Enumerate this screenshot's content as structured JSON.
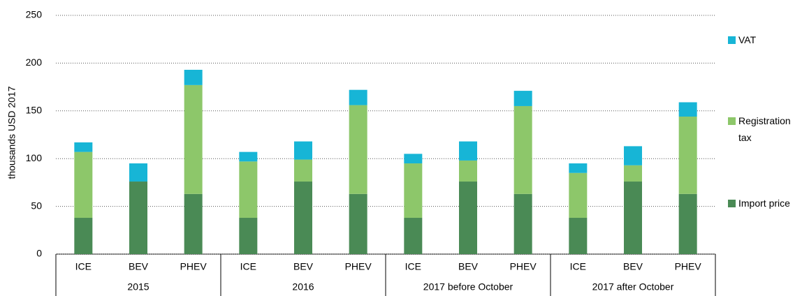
{
  "chart_data": {
    "type": "stacked-bar",
    "y_label": "thousands USD 2017",
    "groups": [
      {
        "name": "2015",
        "categories": [
          "ICE",
          "BEV",
          "PHEV"
        ]
      },
      {
        "name": "2016",
        "categories": [
          "ICE",
          "BEV",
          "PHEV"
        ]
      },
      {
        "name": "2017 before October",
        "categories": [
          "ICE",
          "BEV",
          "PHEV"
        ]
      },
      {
        "name": "2017 after October",
        "categories": [
          "ICE",
          "BEV",
          "PHEV"
        ]
      }
    ],
    "series": [
      {
        "name": "Import price",
        "color": "#4a8a55",
        "values": [
          [
            38,
            76,
            63
          ],
          [
            38,
            76,
            63
          ],
          [
            38,
            76,
            63
          ],
          [
            38,
            76,
            63
          ]
        ]
      },
      {
        "name": "Registration tax",
        "color": "#8dc76a",
        "values": [
          [
            69,
            0,
            114
          ],
          [
            59,
            23,
            93
          ],
          [
            57,
            22,
            92
          ],
          [
            47,
            17,
            81
          ]
        ]
      },
      {
        "name": "VAT",
        "color": "#17b5d6",
        "values": [
          [
            10,
            19,
            16
          ],
          [
            10,
            19,
            16
          ],
          [
            10,
            20,
            16
          ],
          [
            10,
            20,
            15
          ]
        ]
      }
    ],
    "ylim": [
      0,
      250
    ],
    "yticks": [
      0,
      50,
      100,
      150,
      200,
      250
    ],
    "grid": true,
    "legend": "right"
  }
}
